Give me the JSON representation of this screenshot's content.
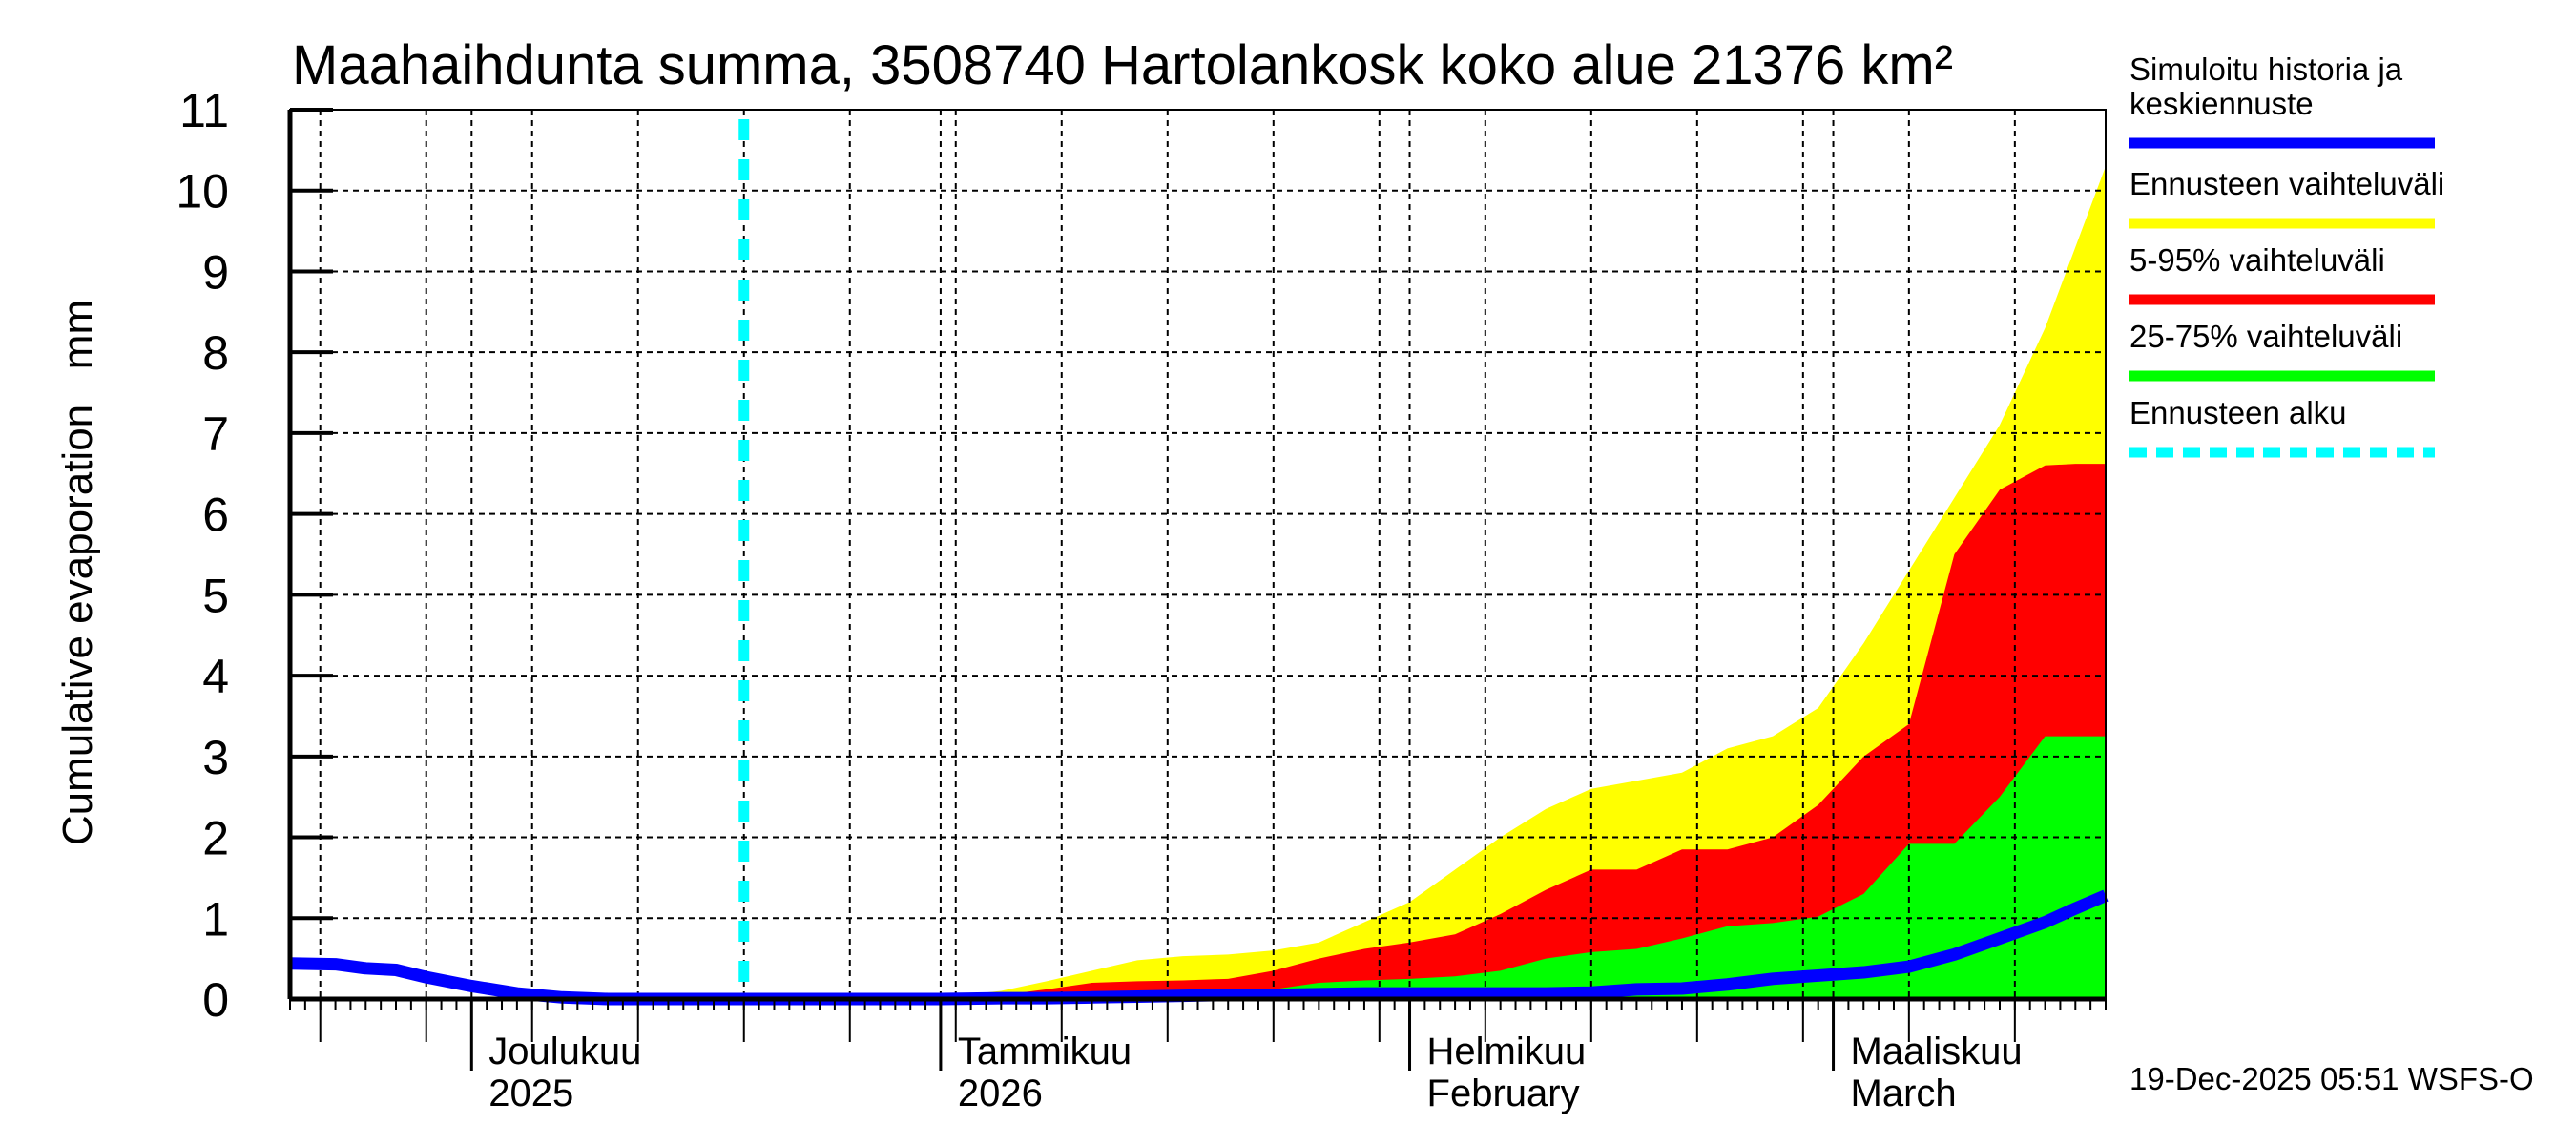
{
  "title": "Maahaihdunta summa, 3508740 Hartolankosk koko alue 21376 km²",
  "footer": "19-Dec-2025 05:51 WSFS-O",
  "legend": {
    "items": [
      {
        "label_lines": [
          "Simuloitu historia ja",
          "keskiennuste"
        ],
        "color": "#0000ff",
        "style": "solid"
      },
      {
        "label_lines": [
          "Ennusteen vaihteluväli"
        ],
        "color": "#ffff00",
        "style": "solid"
      },
      {
        "label_lines": [
          "5-95% vaihteluväli"
        ],
        "color": "#ff0000",
        "style": "solid"
      },
      {
        "label_lines": [
          "25-75% vaihteluväli"
        ],
        "color": "#00ff00",
        "style": "solid"
      },
      {
        "label_lines": [
          "Ennusteen alku"
        ],
        "color": "#00ffff",
        "style": "dashed"
      }
    ]
  },
  "chart_data": {
    "type": "area",
    "title": "Maahaihdunta summa, 3508740 Hartolankosk koko alue 21376 km²",
    "xlabel": "",
    "ylabel": "Cumulative evaporation   mm",
    "ylim": [
      0,
      11
    ],
    "yticks": [
      0,
      1,
      2,
      3,
      4,
      5,
      6,
      7,
      8,
      9,
      10,
      11
    ],
    "grid": true,
    "legend_position": "right",
    "x_start_date": "2025-11-19",
    "x_end_date": "2026-03-19",
    "x_unit": "days since 2025-11-19",
    "xlim": [
      0,
      120
    ],
    "month_ticks": [
      {
        "day": 12,
        "line1": "Joulukuu",
        "line2": "2025"
      },
      {
        "day": 43,
        "line1": "Tammikuu",
        "line2": "2026"
      },
      {
        "day": 74,
        "line1": "Helmikuu",
        "line2": "February"
      },
      {
        "day": 102,
        "line1": "Maaliskuu",
        "line2": "March"
      }
    ],
    "forecast_start_day": 30,
    "x": [
      0,
      3,
      5,
      7,
      9,
      12,
      15,
      18,
      21,
      24,
      27,
      30,
      35,
      40,
      43,
      47,
      50,
      53,
      56,
      59,
      62,
      65,
      68,
      71,
      74,
      77,
      80,
      83,
      86,
      89,
      92,
      95,
      98,
      101,
      104,
      107,
      110,
      113,
      116,
      118,
      120
    ],
    "series": [
      {
        "name": "Simuloitu historia ja keskiennuste",
        "color": "#0000ff",
        "values": [
          0.44,
          0.43,
          0.38,
          0.36,
          0.27,
          0.16,
          0.07,
          0.02,
          0.0,
          0.0,
          0.0,
          0.0,
          0.0,
          0.0,
          0.0,
          0.01,
          0.01,
          0.02,
          0.03,
          0.04,
          0.05,
          0.05,
          0.06,
          0.07,
          0.07,
          0.07,
          0.07,
          0.07,
          0.08,
          0.12,
          0.13,
          0.18,
          0.25,
          0.29,
          0.33,
          0.4,
          0.55,
          0.75,
          0.95,
          1.12,
          1.28
        ]
      },
      {
        "name": "Ennusteen vaihteluväli (max)",
        "color": "#ffff00",
        "values": [
          null,
          null,
          null,
          null,
          null,
          null,
          null,
          null,
          null,
          null,
          null,
          0.0,
          0.0,
          0.0,
          0.02,
          0.1,
          0.22,
          0.35,
          0.48,
          0.53,
          0.55,
          0.6,
          0.7,
          0.95,
          1.2,
          1.6,
          2.0,
          2.35,
          2.6,
          2.7,
          2.8,
          3.1,
          3.25,
          3.6,
          4.4,
          5.3,
          6.2,
          7.1,
          8.3,
          9.3,
          10.3
        ]
      },
      {
        "name": "5-95% vaihteluväli (upper)",
        "color": "#ff0000",
        "values": [
          null,
          null,
          null,
          null,
          null,
          null,
          null,
          null,
          null,
          null,
          null,
          0.0,
          0.0,
          0.0,
          0.01,
          0.05,
          0.12,
          0.2,
          0.22,
          0.23,
          0.25,
          0.35,
          0.5,
          0.62,
          0.7,
          0.8,
          1.05,
          1.35,
          1.6,
          1.6,
          1.85,
          1.85,
          2.0,
          2.4,
          3.0,
          3.4,
          5.5,
          6.3,
          6.6,
          6.62,
          6.62
        ]
      },
      {
        "name": "25-75% vaihteluväli (upper)",
        "color": "#00ff00",
        "values": [
          null,
          null,
          null,
          null,
          null,
          null,
          null,
          null,
          null,
          null,
          null,
          0.0,
          0.0,
          0.0,
          0.0,
          0.0,
          0.01,
          0.02,
          0.03,
          0.05,
          0.08,
          0.12,
          0.2,
          0.23,
          0.25,
          0.28,
          0.35,
          0.5,
          0.58,
          0.62,
          0.75,
          0.9,
          0.94,
          1.02,
          1.3,
          1.92,
          1.92,
          2.5,
          3.25,
          3.25,
          3.25
        ]
      },
      {
        "name": "25-75% vaihteluväli (lower)",
        "color": "#00ff00",
        "values": [
          null,
          null,
          null,
          null,
          null,
          null,
          null,
          null,
          null,
          null,
          null,
          0.0,
          0.0,
          0.0,
          0.0,
          0.0,
          0.0,
          0.0,
          0.0,
          0.0,
          0.0,
          0.0,
          0.0,
          0.0,
          0.0,
          0.0,
          0.0,
          0.0,
          0.0,
          0.0,
          0.0,
          0.0,
          0.0,
          0.0,
          0.0,
          0.0,
          0.0,
          0.0,
          0.0,
          0.0,
          0.0
        ]
      },
      {
        "name": "5-95% vaihteluväli (lower)",
        "color": "#ff0000",
        "values": [
          null,
          null,
          null,
          null,
          null,
          null,
          null,
          null,
          null,
          null,
          null,
          0.0,
          0.0,
          0.0,
          0.0,
          0.0,
          0.0,
          0.0,
          0.0,
          0.0,
          0.0,
          0.0,
          0.0,
          0.0,
          0.0,
          0.0,
          0.0,
          0.0,
          0.0,
          0.0,
          0.0,
          0.0,
          0.0,
          0.0,
          0.0,
          0.02,
          0.08,
          0.15,
          0.25,
          0.3,
          0.35
        ]
      }
    ]
  },
  "axes": {
    "ylabel": "Cumulative evaporation   mm"
  }
}
